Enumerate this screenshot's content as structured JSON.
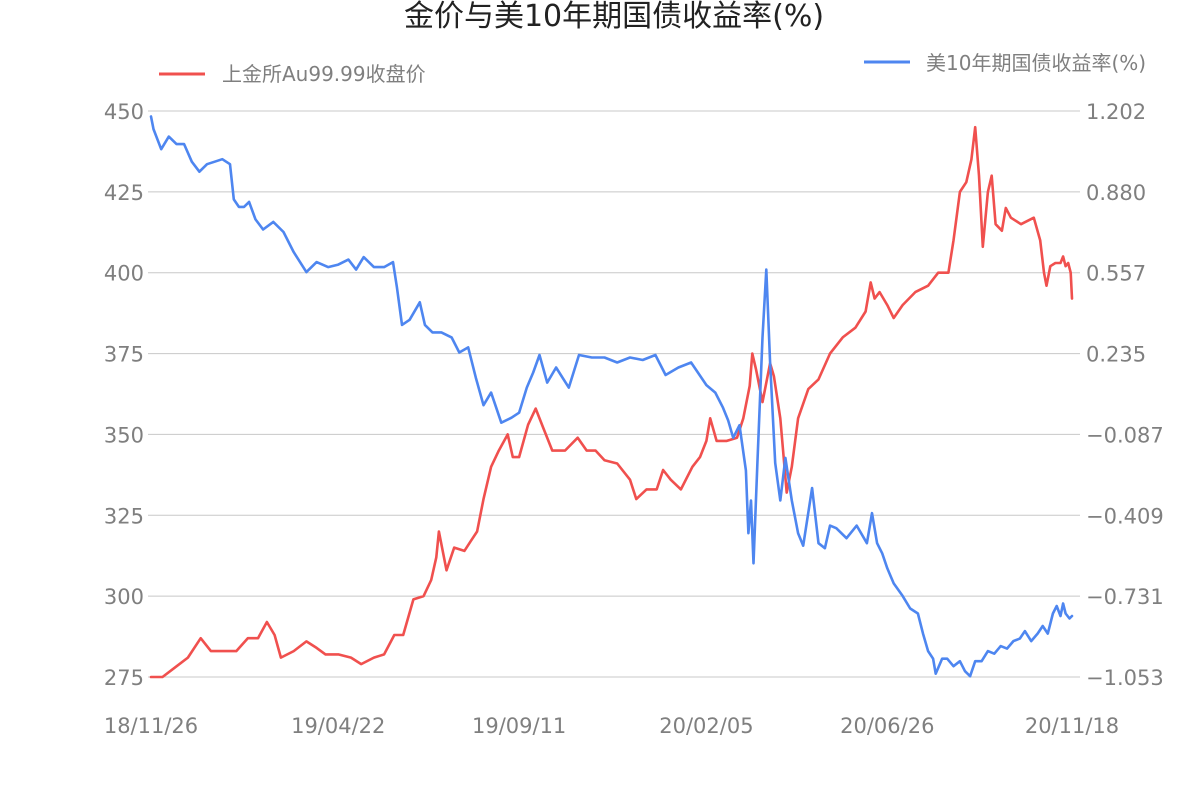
{
  "chart_data": {
    "type": "line",
    "title": "金价与美10年期国债收益率(%)",
    "x_ticks": [
      "18/11/26",
      "19/04/22",
      "19/09/11",
      "20/02/05",
      "20/06/26",
      "20/11/18"
    ],
    "y_left": {
      "ticks": [
        "450",
        "425",
        "400",
        "375",
        "350",
        "325",
        "300",
        "275"
      ],
      "range": [
        275,
        450
      ]
    },
    "y_right": {
      "ticks": [
        "1.202",
        "0.880",
        "0.557",
        "0.235",
        "−0.087",
        "−0.409",
        "−0.731",
        "−1.053"
      ],
      "range": [
        -1.053,
        1.202
      ]
    },
    "grid": true,
    "legend_placement": "top",
    "series": [
      {
        "name": "上金所Au99.99收盘价",
        "axis": "left",
        "color": "#f0504e",
        "points": [
          [
            "18/11/26",
            275
          ],
          [
            "18/12/05",
            275
          ],
          [
            "18/12/15",
            278
          ],
          [
            "18/12/25",
            281
          ],
          [
            "19/01/04",
            287
          ],
          [
            "19/01/12",
            283
          ],
          [
            "19/01/22",
            283
          ],
          [
            "19/02/01",
            283
          ],
          [
            "19/02/10",
            287
          ],
          [
            "19/02/18",
            287
          ],
          [
            "19/02/25",
            292
          ],
          [
            "19/03/03",
            288
          ],
          [
            "19/03/08",
            281
          ],
          [
            "19/03/18",
            283
          ],
          [
            "19/03/28",
            286
          ],
          [
            "19/04/05",
            284
          ],
          [
            "19/04/12",
            282
          ],
          [
            "19/04/22",
            282
          ],
          [
            "19/05/02",
            281
          ],
          [
            "19/05/10",
            279
          ],
          [
            "19/05/20",
            281
          ],
          [
            "19/05/28",
            282
          ],
          [
            "19/06/05",
            288
          ],
          [
            "19/06/12",
            288
          ],
          [
            "19/06/20",
            299
          ],
          [
            "19/06/28",
            300
          ],
          [
            "19/07/04",
            305
          ],
          [
            "19/07/08",
            312
          ],
          [
            "19/07/10",
            320
          ],
          [
            "19/07/16",
            308
          ],
          [
            "19/07/22",
            315
          ],
          [
            "19/07/30",
            314
          ],
          [
            "19/08/04",
            317
          ],
          [
            "19/08/09",
            320
          ],
          [
            "19/08/14",
            330
          ],
          [
            "19/08/20",
            340
          ],
          [
            "19/08/26",
            345
          ],
          [
            "19/09/02",
            350
          ],
          [
            "19/09/06",
            343
          ],
          [
            "19/09/11",
            343
          ],
          [
            "19/09/18",
            353
          ],
          [
            "19/09/24",
            358
          ],
          [
            "19/09/30",
            352
          ],
          [
            "19/10/07",
            345
          ],
          [
            "19/10/17",
            345
          ],
          [
            "19/10/27",
            349
          ],
          [
            "19/11/03",
            345
          ],
          [
            "19/11/10",
            345
          ],
          [
            "19/11/17",
            342
          ],
          [
            "19/11/27",
            341
          ],
          [
            "19/12/07",
            336
          ],
          [
            "19/12/12",
            330
          ],
          [
            "19/12/20",
            333
          ],
          [
            "19/12/28",
            333
          ],
          [
            "20/01/02",
            339
          ],
          [
            "20/01/08",
            336
          ],
          [
            "20/01/16",
            333
          ],
          [
            "20/01/25",
            340
          ],
          [
            "20/01/31",
            343
          ],
          [
            "20/02/05",
            348
          ],
          [
            "20/02/08",
            355
          ],
          [
            "20/02/13",
            348
          ],
          [
            "20/02/21",
            348
          ],
          [
            "20/02/29",
            349
          ],
          [
            "20/03/05",
            355
          ],
          [
            "20/03/10",
            365
          ],
          [
            "20/03/12",
            375
          ],
          [
            "20/03/15",
            370
          ],
          [
            "20/03/20",
            360
          ],
          [
            "20/03/26",
            372
          ],
          [
            "20/03/29",
            368
          ],
          [
            "20/04/03",
            355
          ],
          [
            "20/04/08",
            332
          ],
          [
            "20/04/12",
            340
          ],
          [
            "20/04/17",
            355
          ],
          [
            "20/04/25",
            364
          ],
          [
            "20/05/03",
            367
          ],
          [
            "20/05/12",
            375
          ],
          [
            "20/05/22",
            380
          ],
          [
            "20/06/01",
            383
          ],
          [
            "20/06/09",
            388
          ],
          [
            "20/06/13",
            397
          ],
          [
            "20/06/16",
            392
          ],
          [
            "20/06/20",
            394
          ],
          [
            "20/06/26",
            390
          ],
          [
            "20/07/01",
            386
          ],
          [
            "20/07/08",
            390
          ],
          [
            "20/07/18",
            394
          ],
          [
            "20/07/28",
            396
          ],
          [
            "20/08/05",
            400
          ],
          [
            "20/08/13",
            400
          ],
          [
            "20/08/17",
            410
          ],
          [
            "20/08/22",
            425
          ],
          [
            "20/08/27",
            428
          ],
          [
            "20/08/31",
            435
          ],
          [
            "20/09/03",
            445
          ],
          [
            "20/09/06",
            430
          ],
          [
            "20/09/09",
            408
          ],
          [
            "20/09/13",
            425
          ],
          [
            "20/09/16",
            430
          ],
          [
            "20/09/19",
            415
          ],
          [
            "20/09/24",
            413
          ],
          [
            "20/09/27",
            420
          ],
          [
            "20/10/01",
            417
          ],
          [
            "20/10/09",
            415
          ],
          [
            "20/10/19",
            417
          ],
          [
            "20/10/24",
            410
          ],
          [
            "20/10/27",
            400
          ],
          [
            "20/10/29",
            396
          ],
          [
            "20/11/01",
            402
          ],
          [
            "20/11/05",
            403
          ],
          [
            "20/11/09",
            403
          ],
          [
            "20/11/11",
            405
          ],
          [
            "20/11/13",
            402
          ],
          [
            "20/11/15",
            403
          ],
          [
            "20/11/17",
            400
          ],
          [
            "20/11/18",
            392
          ]
        ]
      },
      {
        "name": "美10年期国债收益率(%)",
        "axis": "right",
        "color": "#4e86f0",
        "points": [
          [
            "18/11/26",
            1.18
          ],
          [
            "18/11/28",
            1.13
          ],
          [
            "18/12/04",
            1.05
          ],
          [
            "18/12/10",
            1.1
          ],
          [
            "18/12/16",
            1.07
          ],
          [
            "18/12/22",
            1.07
          ],
          [
            "18/12/28",
            1.0
          ],
          [
            "19/01/03",
            0.96
          ],
          [
            "19/01/09",
            0.99
          ],
          [
            "19/01/15",
            1.0
          ],
          [
            "19/01/21",
            1.01
          ],
          [
            "19/01/27",
            0.99
          ],
          [
            "19/01/30",
            0.85
          ],
          [
            "19/02/03",
            0.82
          ],
          [
            "19/02/07",
            0.82
          ],
          [
            "19/02/11",
            0.84
          ],
          [
            "19/02/16",
            0.77
          ],
          [
            "19/02/22",
            0.73
          ],
          [
            "19/03/02",
            0.76
          ],
          [
            "19/03/10",
            0.72
          ],
          [
            "19/03/18",
            0.64
          ],
          [
            "19/03/28",
            0.56
          ],
          [
            "19/04/05",
            0.6
          ],
          [
            "19/04/14",
            0.58
          ],
          [
            "19/04/22",
            0.59
          ],
          [
            "19/04/30",
            0.61
          ],
          [
            "19/05/06",
            0.57
          ],
          [
            "19/05/12",
            0.62
          ],
          [
            "19/05/20",
            0.58
          ],
          [
            "19/05/28",
            0.58
          ],
          [
            "19/06/04",
            0.6
          ],
          [
            "19/06/07",
            0.5
          ],
          [
            "19/06/11",
            0.35
          ],
          [
            "19/06/17",
            0.37
          ],
          [
            "19/06/25",
            0.44
          ],
          [
            "19/06/29",
            0.35
          ],
          [
            "19/07/05",
            0.32
          ],
          [
            "19/07/12",
            0.32
          ],
          [
            "19/07/20",
            0.3
          ],
          [
            "19/07/26",
            0.24
          ],
          [
            "19/08/02",
            0.26
          ],
          [
            "19/08/08",
            0.14
          ],
          [
            "19/08/14",
            0.03
          ],
          [
            "19/08/20",
            0.08
          ],
          [
            "19/08/28",
            -0.04
          ],
          [
            "19/09/05",
            -0.02
          ],
          [
            "19/09/11",
            0.0
          ],
          [
            "19/09/17",
            0.1
          ],
          [
            "19/09/22",
            0.16
          ],
          [
            "19/09/27",
            0.23
          ],
          [
            "19/10/03",
            0.12
          ],
          [
            "19/10/10",
            0.18
          ],
          [
            "19/10/20",
            0.1
          ],
          [
            "19/10/28",
            0.23
          ],
          [
            "19/11/07",
            0.22
          ],
          [
            "19/11/17",
            0.22
          ],
          [
            "19/11/27",
            0.2
          ],
          [
            "19/12/07",
            0.22
          ],
          [
            "19/12/17",
            0.21
          ],
          [
            "19/12/27",
            0.23
          ],
          [
            "20/01/04",
            0.15
          ],
          [
            "20/01/14",
            0.18
          ],
          [
            "20/01/24",
            0.2
          ],
          [
            "20/02/05",
            0.11
          ],
          [
            "20/02/12",
            0.08
          ],
          [
            "20/02/18",
            0.02
          ],
          [
            "20/02/22",
            -0.03
          ],
          [
            "20/02/26",
            -0.1
          ],
          [
            "20/03/02",
            -0.05
          ],
          [
            "20/03/07",
            -0.23
          ],
          [
            "20/03/09",
            -0.48
          ],
          [
            "20/03/11",
            -0.35
          ],
          [
            "20/03/13",
            -0.6
          ],
          [
            "20/03/16",
            -0.2
          ],
          [
            "20/03/20",
            0.3
          ],
          [
            "20/03/23",
            0.57
          ],
          [
            "20/03/26",
            0.2
          ],
          [
            "20/03/30",
            -0.2
          ],
          [
            "20/04/03",
            -0.35
          ],
          [
            "20/04/07",
            -0.18
          ],
          [
            "20/04/12",
            -0.35
          ],
          [
            "20/04/17",
            -0.48
          ],
          [
            "20/04/21",
            -0.53
          ],
          [
            "20/04/28",
            -0.3
          ],
          [
            "20/05/03",
            -0.52
          ],
          [
            "20/05/08",
            -0.54
          ],
          [
            "20/05/12",
            -0.45
          ],
          [
            "20/05/17",
            -0.46
          ],
          [
            "20/05/25",
            -0.5
          ],
          [
            "20/06/02",
            -0.45
          ],
          [
            "20/06/10",
            -0.52
          ],
          [
            "20/06/14",
            -0.4
          ],
          [
            "20/06/18",
            -0.52
          ],
          [
            "20/06/22",
            -0.56
          ],
          [
            "20/06/26",
            -0.62
          ],
          [
            "20/07/01",
            -0.68
          ],
          [
            "20/07/08",
            -0.73
          ],
          [
            "20/07/14",
            -0.78
          ],
          [
            "20/07/20",
            -0.8
          ],
          [
            "20/07/24",
            -0.88
          ],
          [
            "20/07/28",
            -0.95
          ],
          [
            "20/08/01",
            -0.98
          ],
          [
            "20/08/03",
            -1.04
          ],
          [
            "20/08/08",
            -0.98
          ],
          [
            "20/08/12",
            -0.98
          ],
          [
            "20/08/17",
            -1.01
          ],
          [
            "20/08/22",
            -0.99
          ],
          [
            "20/08/26",
            -1.03
          ],
          [
            "20/08/30",
            -1.05
          ],
          [
            "20/09/03",
            -0.99
          ],
          [
            "20/09/08",
            -0.99
          ],
          [
            "20/09/13",
            -0.95
          ],
          [
            "20/09/18",
            -0.96
          ],
          [
            "20/09/23",
            -0.93
          ],
          [
            "20/09/28",
            -0.94
          ],
          [
            "20/10/03",
            -0.91
          ],
          [
            "20/10/08",
            -0.9
          ],
          [
            "20/10/12",
            -0.87
          ],
          [
            "20/10/17",
            -0.91
          ],
          [
            "20/10/22",
            -0.88
          ],
          [
            "20/10/26",
            -0.85
          ],
          [
            "20/10/30",
            -0.88
          ],
          [
            "20/11/03",
            -0.8
          ],
          [
            "20/11/06",
            -0.77
          ],
          [
            "20/11/09",
            -0.81
          ],
          [
            "20/11/11",
            -0.76
          ],
          [
            "20/11/13",
            -0.8
          ],
          [
            "20/11/16",
            -0.82
          ],
          [
            "20/11/18",
            -0.81
          ]
        ]
      }
    ]
  }
}
